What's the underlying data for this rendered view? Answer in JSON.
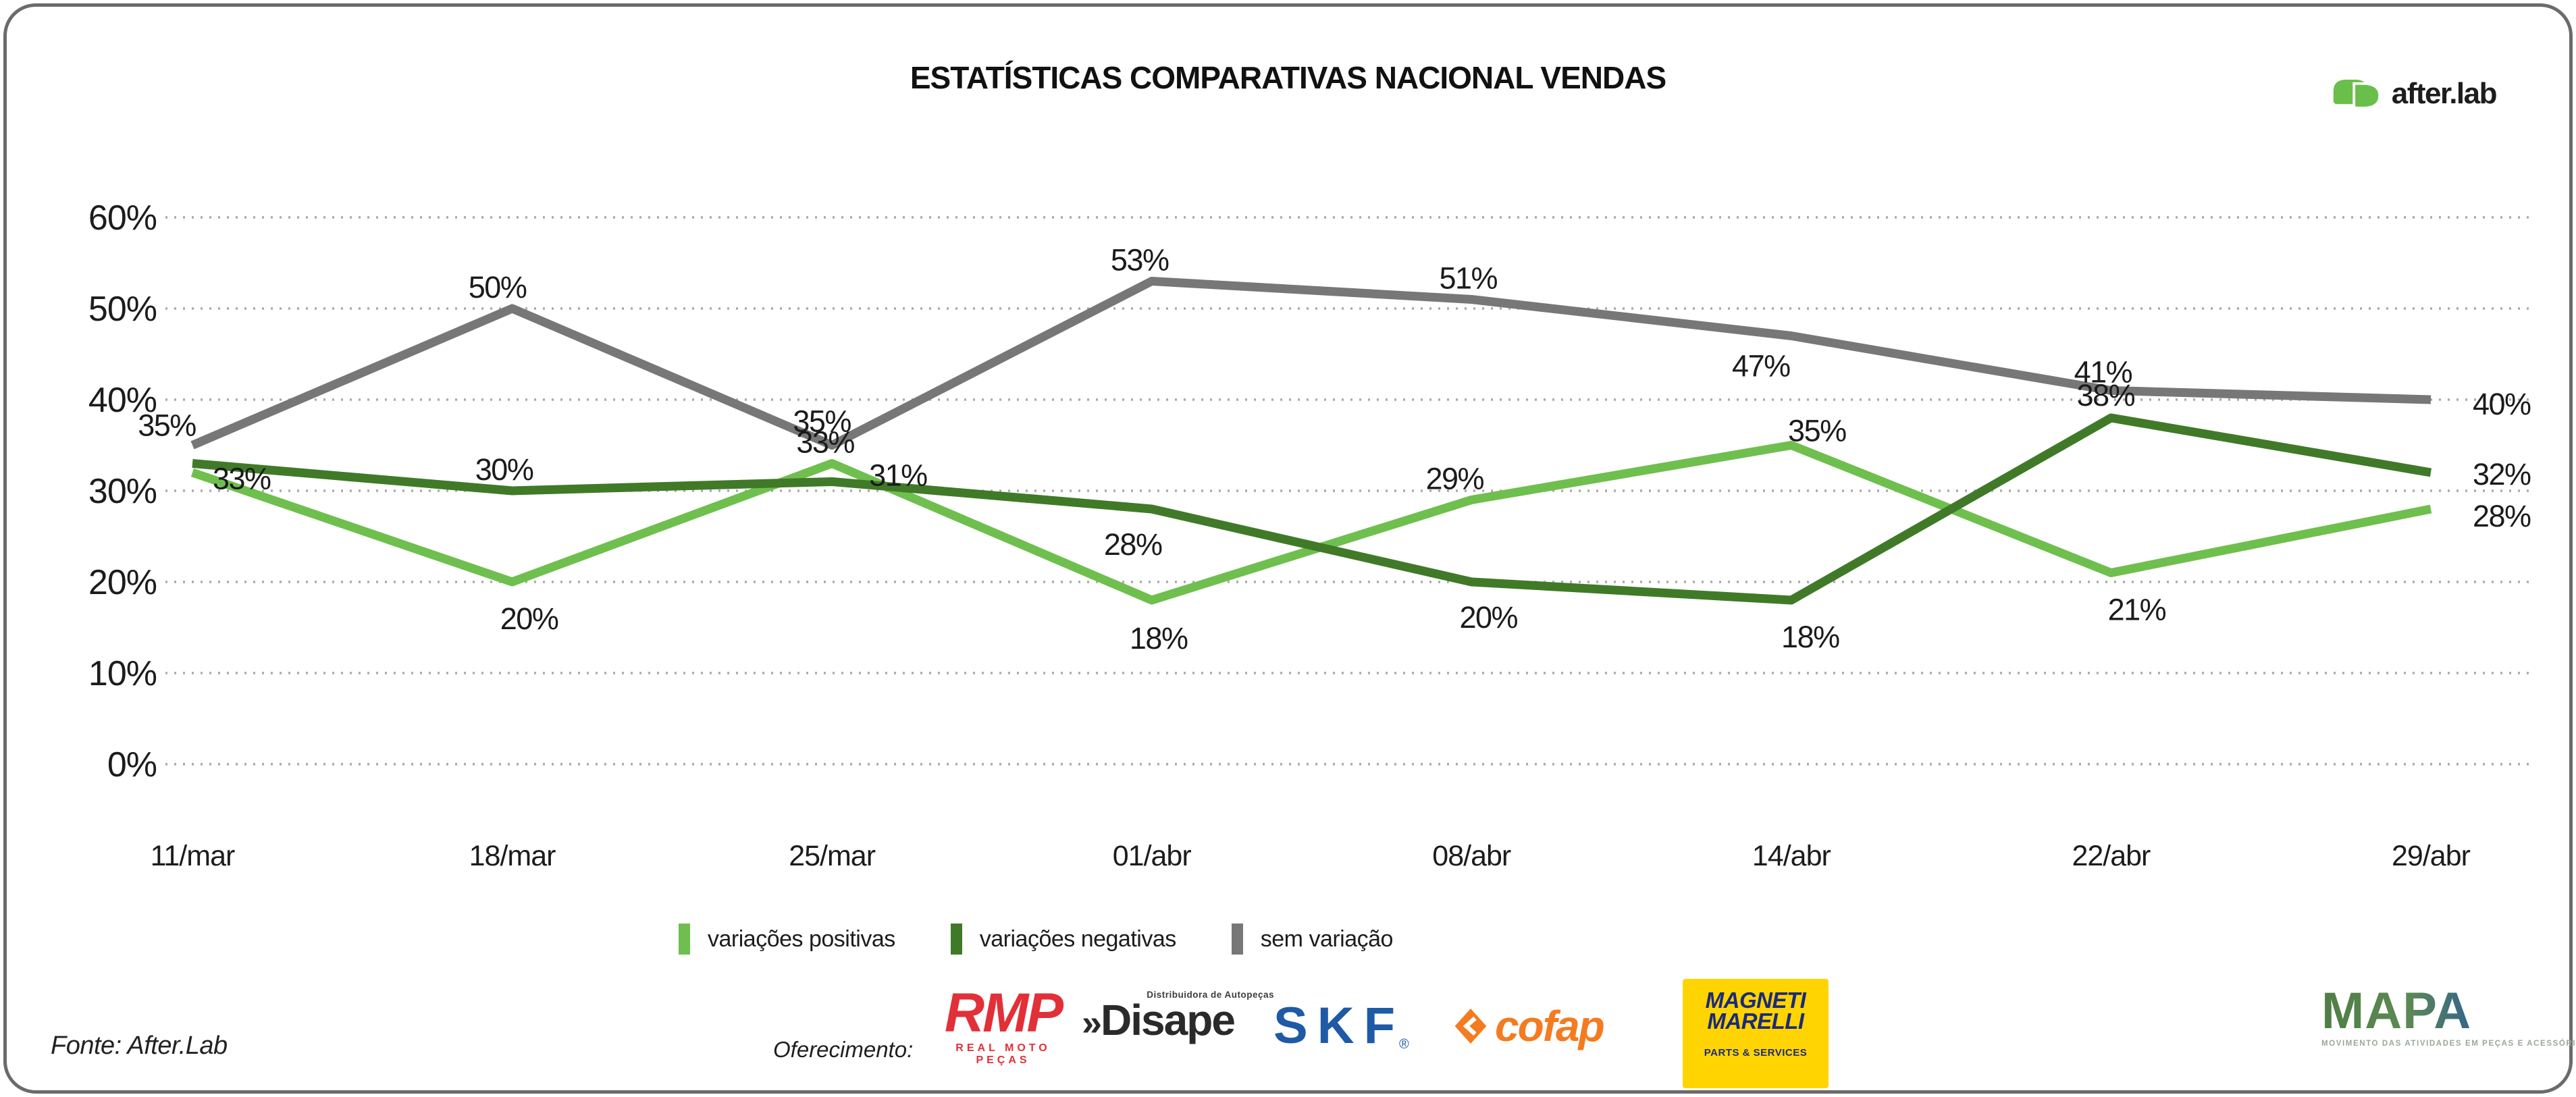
{
  "frame": {
    "border_color": "#6b6b6b"
  },
  "header": {
    "brand": {
      "name": "after.lab",
      "color": "#6abf4a"
    }
  },
  "chart_data": {
    "type": "line",
    "title": "ESTATÍSTICAS COMPARATIVAS NACIONAL VENDAS",
    "categories": [
      "11/mar",
      "18/mar",
      "25/mar",
      "01/abr",
      "08/abr",
      "14/abr",
      "22/abr",
      "29/abr"
    ],
    "series": [
      {
        "name": "variações positivas",
        "color": "#6fbf4e",
        "values": [
          32,
          20,
          33,
          18,
          29,
          35,
          21,
          28
        ],
        "point_labels": [
          "",
          "20%",
          "33%",
          "18%",
          "29%",
          "35%",
          "21%",
          "28%"
        ]
      },
      {
        "name": "variações negativas",
        "color": "#407a28",
        "values": [
          33,
          30,
          31,
          28,
          20,
          18,
          38,
          32
        ],
        "point_labels": [
          "33%",
          "30%",
          "31%",
          "28%",
          "20%",
          "18%",
          "38%",
          "32%"
        ]
      },
      {
        "name": "sem variação",
        "color": "#777777",
        "values": [
          35,
          50,
          35,
          53,
          51,
          47,
          41,
          40
        ],
        "point_labels": [
          "35%",
          "50%",
          "35%",
          "53%",
          "51%",
          "47%",
          "41%",
          "40%"
        ]
      }
    ],
    "xlabel": "",
    "ylabel": "",
    "ylim": [
      0,
      60
    ],
    "yticks": [
      "0%",
      "10%",
      "20%",
      "30%",
      "40%",
      "50%",
      "60%"
    ],
    "grid": "horizontal-dotted",
    "grid_color": "#a8a8a8",
    "legend_position": "bottom"
  },
  "footer": {
    "source": "Fonte: After.Lab",
    "sponsor_label": "Oferecimento:",
    "sponsors": [
      {
        "name": "RMP",
        "tagline": "REAL MOTO PEÇAS",
        "color": "#e23038"
      },
      {
        "name": "Disape",
        "prefix": "»",
        "tagline": "Distribuidora de Autopeças",
        "color": "#2a2a2a"
      },
      {
        "name": "SKF",
        "suffix": "®",
        "color": "#1e5aa6"
      },
      {
        "name": "cofap",
        "color": "#f47b20"
      },
      {
        "name": "MAGNETI MARELLI",
        "line1": "MAGNETI",
        "line2": "MARELLI",
        "tagline": "PARTS & SERVICES",
        "bg": "#ffd400",
        "color": "#1b2a7b"
      }
    ],
    "mapa": {
      "name": "MAPA",
      "tagline": "MOVIMENTO DAS ATIVIDADES EM PEÇAS E ACESSÓRIOS",
      "color_left": "#4f7d45",
      "color_right": "#153a75"
    }
  }
}
